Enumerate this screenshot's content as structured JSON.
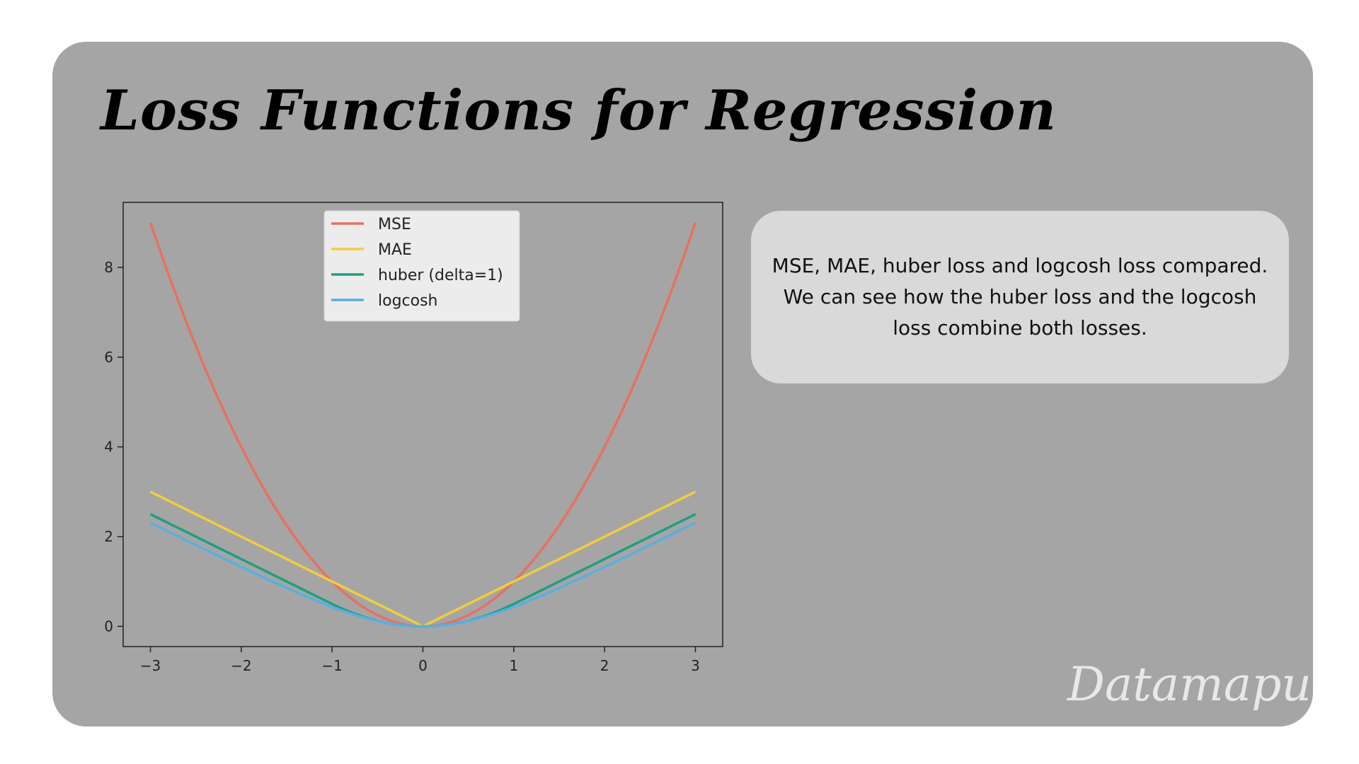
{
  "title": "Loss Functions for Regression",
  "description": "MSE, MAE, huber loss and  logcosh loss compared. We can see how the huber loss and the logcosh loss combine both losses.",
  "watermark": "Datamapu",
  "colors": {
    "card_bg": "#a5a5a5",
    "description_bg": "#d9d9d9",
    "mse": "#e8705f",
    "mae": "#f2cd3c",
    "huber": "#1f9e82",
    "logcosh": "#5aaee0"
  },
  "chart_data": {
    "type": "line",
    "title": "",
    "xlabel": "",
    "ylabel": "",
    "xlim": [
      -3.3,
      3.3
    ],
    "ylim": [
      -0.45,
      9.45
    ],
    "xticks": [
      -3,
      -2,
      -1,
      0,
      1,
      2,
      3
    ],
    "xtick_labels": [
      "−3",
      "−2",
      "−1",
      "0",
      "1",
      "2",
      "3"
    ],
    "yticks": [
      0,
      2,
      4,
      6,
      8
    ],
    "ytick_labels": [
      "0",
      "2",
      "4",
      "6",
      "8"
    ],
    "grid": false,
    "legend_position": "upper-center",
    "x": [
      -3,
      -2.5,
      -2,
      -1.5,
      -1,
      -0.5,
      0,
      0.5,
      1,
      1.5,
      2,
      2.5,
      3
    ],
    "series": [
      {
        "name": "MSE",
        "color": "#e8705f",
        "values": [
          9,
          6.25,
          4,
          2.25,
          1,
          0.25,
          0,
          0.25,
          1,
          2.25,
          4,
          6.25,
          9
        ]
      },
      {
        "name": "MAE",
        "color": "#f2cd3c",
        "values": [
          3,
          2.5,
          2,
          1.5,
          1,
          0.5,
          0,
          0.5,
          1,
          1.5,
          2,
          2.5,
          3
        ]
      },
      {
        "name": "huber (delta=1)",
        "color": "#1f9e82",
        "values": [
          2.5,
          2,
          1.5,
          1,
          0.5,
          0.125,
          0,
          0.125,
          0.5,
          1,
          1.5,
          2,
          2.5
        ]
      },
      {
        "name": "logcosh",
        "color": "#5aaee0",
        "values": [
          2.31,
          1.83,
          1.33,
          0.86,
          0.43,
          0.12,
          0,
          0.12,
          0.43,
          0.86,
          1.33,
          1.83,
          2.31
        ]
      }
    ]
  }
}
